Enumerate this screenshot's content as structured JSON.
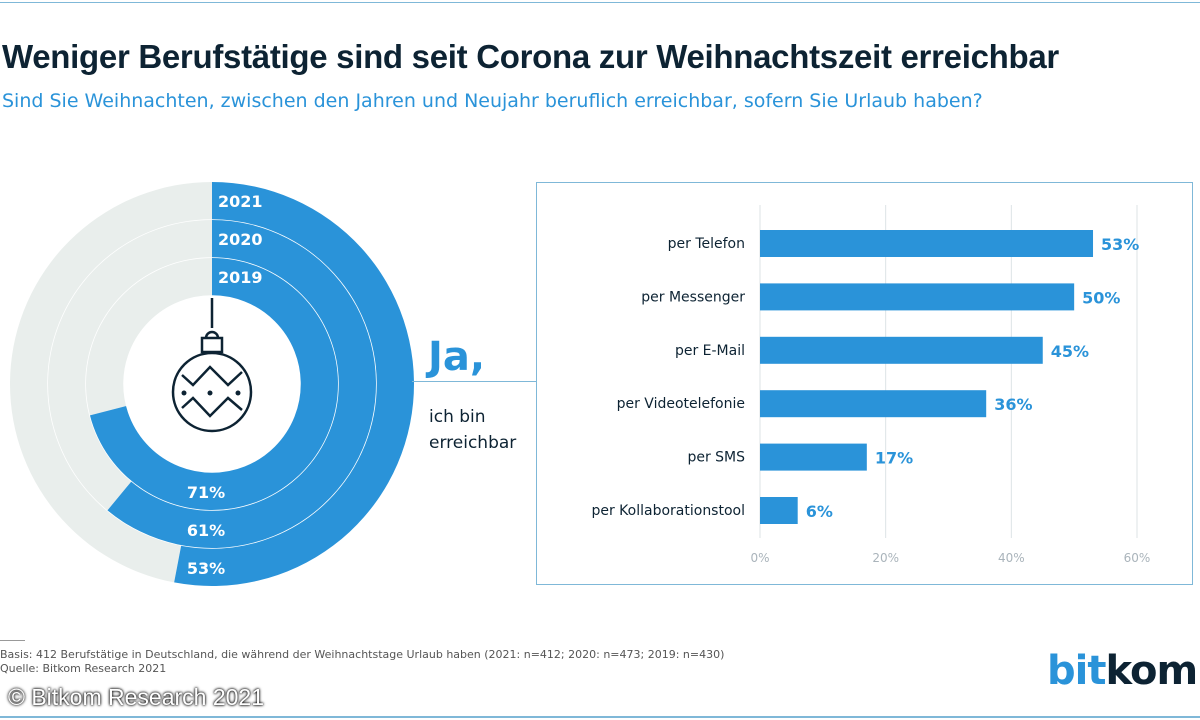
{
  "title": "Weniger Berufstätige sind seit Corona zur Weihnachtszeit erreichbar",
  "subtitle": "Sind Sie Weihnachten, zwischen den Jahren und Neujahr beruflich erreichbar, sofern Sie Urlaub haben?",
  "colors": {
    "accent": "#2a93d9",
    "remainder": "#e9eeec",
    "text": "#0d2333"
  },
  "icon": "christmas-bauble-icon",
  "answer": {
    "ja": "Ja,",
    "line1": "ich bin",
    "line2": "erreichbar"
  },
  "chart_data": [
    {
      "type": "donut",
      "series": [
        {
          "name": "2021",
          "value": 53,
          "label": "53%"
        },
        {
          "name": "2020",
          "value": 61,
          "label": "61%"
        },
        {
          "name": "2019",
          "value": 71,
          "label": "71%"
        }
      ]
    },
    {
      "type": "bar",
      "orientation": "horizontal",
      "categories": [
        "per Telefon",
        "per Messenger",
        "per E-Mail",
        "per Videotelefonie",
        "per SMS",
        "per Kollaborationstool"
      ],
      "values": [
        53,
        50,
        45,
        36,
        17,
        6
      ],
      "value_labels": [
        "53%",
        "50%",
        "45%",
        "36%",
        "17%",
        "6%"
      ],
      "xlim": [
        0,
        60
      ],
      "xticks": [
        "0%",
        "20%",
        "40%",
        "60%"
      ],
      "grid": true
    }
  ],
  "footer": {
    "basis": "Basis: 412 Berufstätige in Deutschland, die während der Weihnachtstage Urlaub haben (2021: n=412; 2020: n=473; 2019: n=430)",
    "source": "Quelle: Bitkom Research 2021",
    "watermark": "© Bitkom Research 2021"
  },
  "logo": {
    "part1": "bit",
    "part2": "kom"
  }
}
